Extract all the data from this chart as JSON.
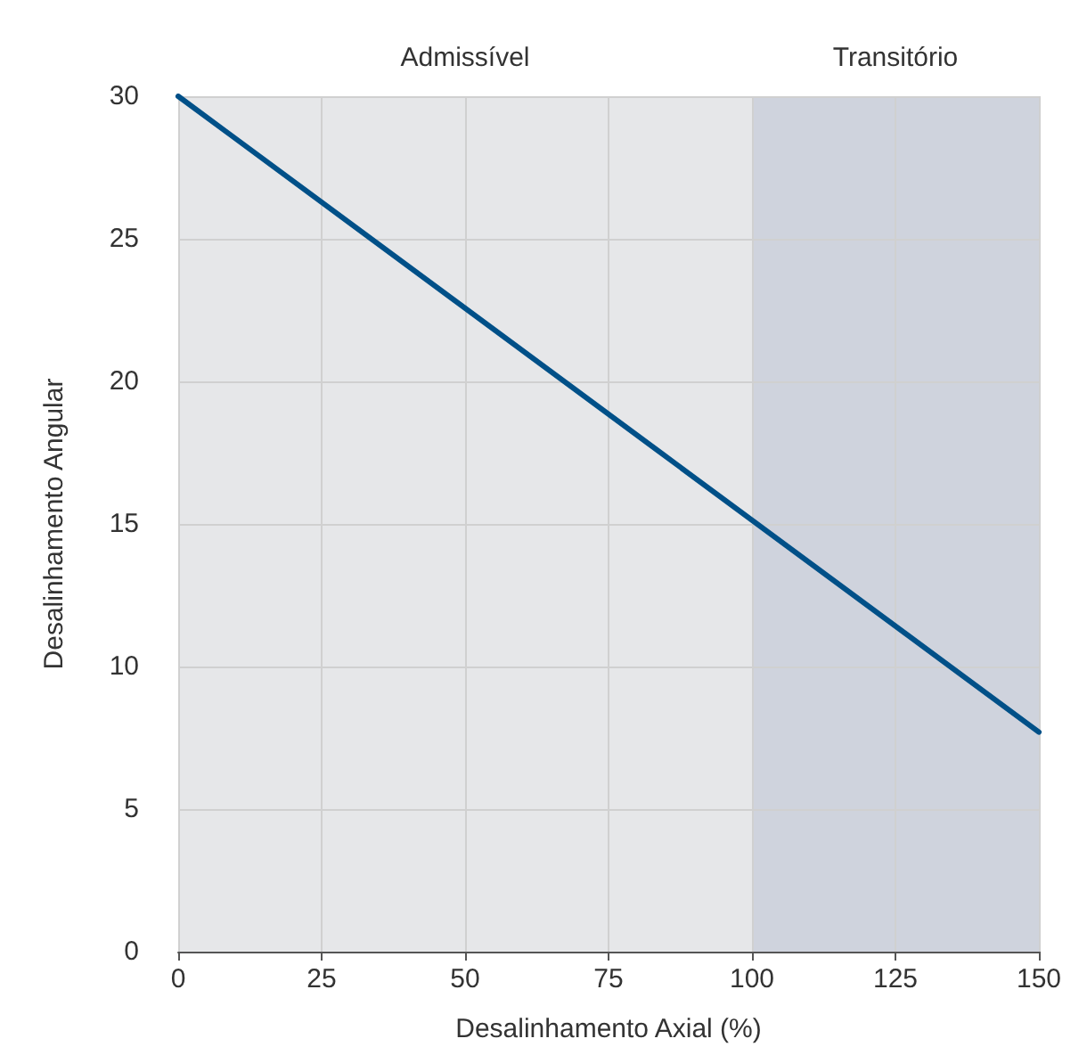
{
  "chart_data": {
    "type": "line",
    "xlabel": "Desalinhamento Axial (%)",
    "ylabel": "Desalinhamento Angular",
    "x": [
      0,
      150
    ],
    "series": [
      {
        "color": "#005088",
        "values": [
          30,
          7.7
        ]
      }
    ],
    "xlim": [
      0,
      150
    ],
    "xticks": [
      0,
      25,
      50,
      75,
      100,
      125,
      150
    ],
    "ylim": [
      0,
      30
    ],
    "yticks": [
      0,
      5,
      10,
      15,
      20,
      25,
      30
    ],
    "bands": [
      {
        "axis": "x",
        "from": 0,
        "to": 100,
        "label": "Admissível",
        "color": "#e6e7e9"
      },
      {
        "axis": "x",
        "from": 100,
        "to": 150,
        "label": "Transitório",
        "color": "#cfd3dd"
      }
    ],
    "grid": true,
    "marker": "none",
    "line_style": "solid"
  }
}
